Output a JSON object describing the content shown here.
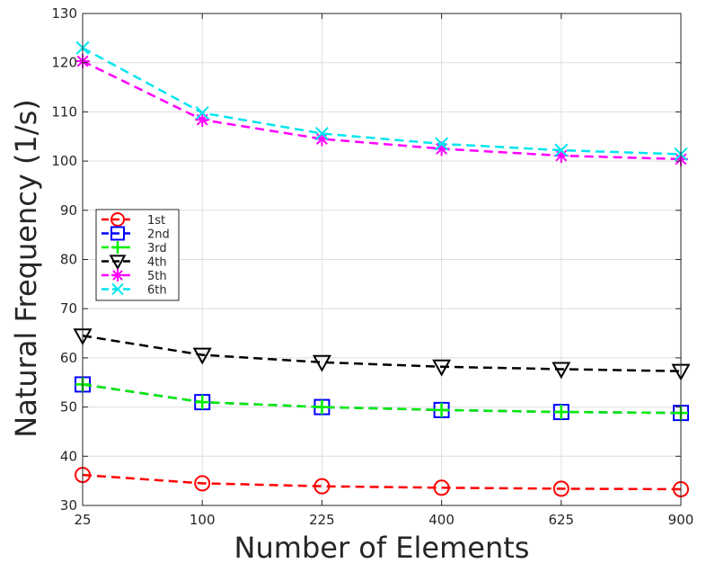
{
  "chart_data": {
    "type": "line",
    "title": "",
    "xlabel": "Number of Elements",
    "ylabel": "Natural Frequency (1/s)",
    "categories": [
      "25",
      "100",
      "225",
      "400",
      "625",
      "900"
    ],
    "ylim": [
      30,
      130
    ],
    "yticks": [
      "30",
      "40",
      "50",
      "60",
      "70",
      "80",
      "90",
      "100",
      "110",
      "120",
      "130"
    ],
    "grid": true,
    "legend_position": "center-left",
    "series": [
      {
        "name": "1st",
        "values": [
          36.2,
          34.5,
          33.9,
          33.6,
          33.4,
          33.3
        ],
        "color": "#ff0000",
        "marker": "circle"
      },
      {
        "name": "2nd",
        "values": [
          54.6,
          51.0,
          50.0,
          49.4,
          49.0,
          48.8
        ],
        "color": "#0000ff",
        "marker": "square"
      },
      {
        "name": "3rd",
        "values": [
          54.6,
          51.0,
          50.0,
          49.4,
          49.0,
          48.8
        ],
        "color": "#00ee00",
        "marker": "plus"
      },
      {
        "name": "4th",
        "values": [
          64.5,
          60.6,
          59.1,
          58.2,
          57.7,
          57.3
        ],
        "color": "#000000",
        "marker": "triangle-down"
      },
      {
        "name": "5th",
        "values": [
          120.3,
          108.4,
          104.5,
          102.5,
          101.1,
          100.4
        ],
        "color": "#ff00ff",
        "marker": "asterisk"
      },
      {
        "name": "6th",
        "values": [
          123.0,
          109.8,
          105.6,
          103.5,
          102.2,
          101.4
        ],
        "color": "#00e5ee",
        "marker": "star"
      }
    ]
  }
}
